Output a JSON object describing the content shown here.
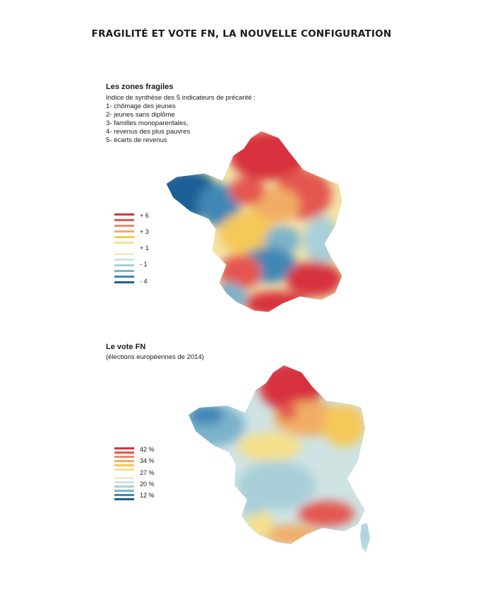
{
  "page_title": "FRAGILITÉ ET VOTE FN, LA NOUVELLE CONFIGURATION",
  "map1": {
    "title": "Les zones fragiles",
    "intro": "Indice de synthèse des 5 indicateurs de précarité :",
    "indicators": [
      "1- chômage des jeunes",
      "2- jeunes sans diplôme",
      "3- familles monoparentales,",
      "4- revenus des plus pauvres",
      "5- écarts de revenus"
    ],
    "legend_labels": [
      "+ 6",
      "+ 3",
      "+ 1",
      "- 1",
      "- 4"
    ],
    "legend_colors": [
      "#d7323d",
      "#e4574f",
      "#ec8a6a",
      "#f1ad65",
      "#f5c85a",
      "#f6e08c",
      "#f3ecc4",
      "#cfe3e3",
      "#a8cfd8",
      "#7bb3cb",
      "#3f87b5",
      "#1c5f96"
    ]
  },
  "map2": {
    "title": "Le vote FN",
    "subtitle": "(élections européennes de 2014)",
    "legend_labels": [
      "42 %",
      "34 %",
      "27 %",
      "20 %",
      "12 %"
    ],
    "legend_colors": [
      "#d7323d",
      "#e4574f",
      "#ec8a6a",
      "#f1ad65",
      "#f5c85a",
      "#f6e08c",
      "#f3ecc4",
      "#cfe3e3",
      "#a8cfd8",
      "#7bb3cb",
      "#3f87b5",
      "#1c5f96"
    ]
  }
}
